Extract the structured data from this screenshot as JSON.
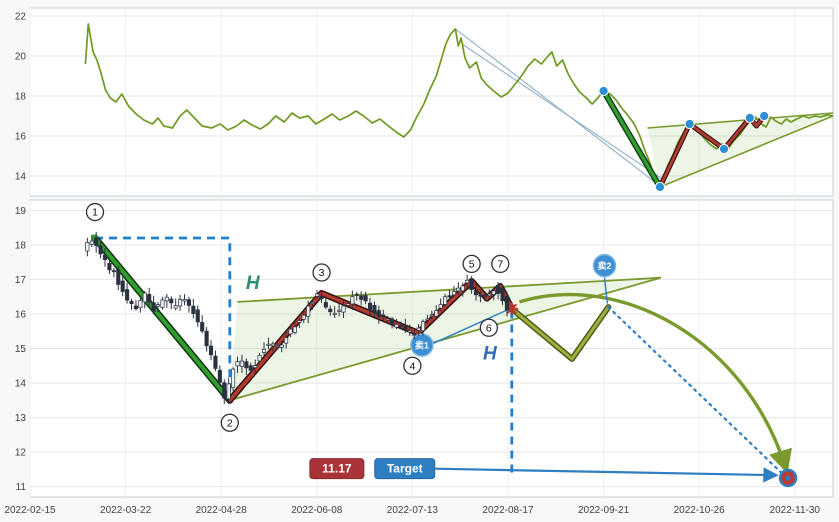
{
  "axis": {
    "bg": "#ffffff",
    "panel_border": "#c9ced3",
    "grid_color": "#e3e6e9",
    "vgrid_color": "#edf0f2",
    "text_color": "#3c3f44"
  },
  "chart_data": [
    {
      "name": "overview",
      "type": "line",
      "ylim": [
        13.0,
        22.4
      ],
      "yticks": [
        14,
        16,
        18,
        20,
        22
      ],
      "line_color": "#6f9a22",
      "points": [
        [
          0.58,
          19.6
        ],
        [
          0.61,
          21.6
        ],
        [
          0.66,
          20.2
        ],
        [
          0.7,
          19.8
        ],
        [
          0.74,
          19.2
        ],
        [
          0.79,
          18.3
        ],
        [
          0.84,
          17.9
        ],
        [
          0.9,
          17.7
        ],
        [
          0.96,
          18.1
        ],
        [
          1.03,
          17.5
        ],
        [
          1.11,
          17.1
        ],
        [
          1.19,
          16.8
        ],
        [
          1.28,
          16.6
        ],
        [
          1.34,
          16.9
        ],
        [
          1.4,
          16.5
        ],
        [
          1.49,
          16.4
        ],
        [
          1.57,
          17.0
        ],
        [
          1.64,
          17.3
        ],
        [
          1.72,
          16.9
        ],
        [
          1.8,
          16.5
        ],
        [
          1.9,
          16.4
        ],
        [
          1.99,
          16.6
        ],
        [
          2.07,
          16.3
        ],
        [
          2.16,
          16.5
        ],
        [
          2.24,
          16.8
        ],
        [
          2.32,
          16.55
        ],
        [
          2.41,
          16.35
        ],
        [
          2.49,
          16.6
        ],
        [
          2.57,
          17.0
        ],
        [
          2.66,
          16.7
        ],
        [
          2.74,
          17.15
        ],
        [
          2.82,
          16.9
        ],
        [
          2.91,
          17.0
        ],
        [
          2.99,
          16.6
        ],
        [
          3.08,
          16.85
        ],
        [
          3.16,
          17.1
        ],
        [
          3.24,
          16.8
        ],
        [
          3.33,
          17.0
        ],
        [
          3.41,
          17.25
        ],
        [
          3.49,
          17.0
        ],
        [
          3.58,
          16.65
        ],
        [
          3.66,
          16.85
        ],
        [
          3.75,
          16.5
        ],
        [
          3.83,
          16.2
        ],
        [
          3.91,
          15.95
        ],
        [
          3.98,
          16.3
        ],
        [
          4.04,
          16.9
        ],
        [
          4.12,
          17.6
        ],
        [
          4.18,
          18.3
        ],
        [
          4.25,
          19.0
        ],
        [
          4.3,
          19.8
        ],
        [
          4.35,
          20.6
        ],
        [
          4.4,
          21.1
        ],
        [
          4.45,
          21.35
        ],
        [
          4.48,
          20.5
        ],
        [
          4.51,
          20.9
        ],
        [
          4.55,
          19.9
        ],
        [
          4.6,
          19.4
        ],
        [
          4.67,
          19.7
        ],
        [
          4.72,
          18.9
        ],
        [
          4.78,
          18.55
        ],
        [
          4.85,
          18.25
        ],
        [
          4.93,
          17.95
        ],
        [
          5.0,
          18.15
        ],
        [
          5.06,
          18.5
        ],
        [
          5.14,
          19.0
        ],
        [
          5.21,
          19.5
        ],
        [
          5.28,
          19.85
        ],
        [
          5.35,
          19.6
        ],
        [
          5.41,
          19.95
        ],
        [
          5.46,
          20.2
        ],
        [
          5.51,
          19.5
        ],
        [
          5.57,
          19.8
        ],
        [
          5.63,
          19.1
        ],
        [
          5.69,
          18.6
        ],
        [
          5.75,
          18.2
        ],
        [
          5.82,
          17.9
        ],
        [
          5.88,
          17.6
        ],
        [
          5.94,
          17.9
        ],
        [
          6.0,
          18.25
        ],
        [
          6.07,
          18.1
        ],
        [
          6.13,
          17.8
        ],
        [
          6.19,
          17.4
        ],
        [
          6.26,
          17.0
        ],
        [
          6.32,
          16.6
        ],
        [
          6.38,
          16.0
        ],
        [
          6.43,
          15.3
        ],
        [
          6.49,
          14.6
        ],
        [
          6.53,
          14.0
        ],
        [
          6.56,
          13.6
        ],
        [
          6.59,
          13.45
        ],
        [
          6.63,
          13.9
        ],
        [
          6.67,
          14.5
        ],
        [
          6.73,
          15.1
        ],
        [
          6.78,
          15.7
        ],
        [
          6.83,
          16.1
        ],
        [
          6.88,
          16.45
        ],
        [
          6.94,
          16.6
        ],
        [
          6.99,
          16.25
        ],
        [
          7.05,
          15.9
        ],
        [
          7.11,
          15.6
        ],
        [
          7.18,
          15.35
        ],
        [
          7.24,
          15.6
        ],
        [
          7.3,
          15.35
        ],
        [
          7.36,
          15.75
        ],
        [
          7.43,
          16.1
        ],
        [
          7.49,
          16.5
        ],
        [
          7.54,
          16.8
        ],
        [
          7.59,
          16.95
        ],
        [
          7.65,
          16.6
        ],
        [
          7.7,
          16.45
        ],
        [
          7.75,
          16.95
        ],
        [
          7.8,
          16.75
        ],
        [
          7.86,
          16.6
        ],
        [
          7.91,
          16.85
        ],
        [
          7.96,
          16.7
        ],
        [
          8.02,
          16.85
        ],
        [
          8.09,
          17.0
        ],
        [
          8.15,
          16.9
        ],
        [
          8.21,
          17.0
        ],
        [
          8.27,
          16.95
        ],
        [
          8.34,
          17.05
        ],
        [
          8.4,
          17.0
        ]
      ],
      "thin_lines": [
        [
          [
            4.45,
            21.35
          ],
          [
            6.59,
            13.5
          ]
        ],
        [
          [
            4.52,
            20.6
          ],
          [
            6.63,
            13.8
          ]
        ]
      ],
      "triangle": {
        "upper": [
          [
            6.46,
            16.4
          ],
          [
            8.4,
            17.15
          ]
        ],
        "lower": [
          [
            6.59,
            13.45
          ],
          [
            8.4,
            17.0
          ]
        ],
        "fill": "rgba(140,195,100,0.16)",
        "edge": "#7a9a2e"
      },
      "impulse": [
        [
          6.0,
          18.25
        ],
        [
          6.59,
          13.45
        ]
      ],
      "zigzag": [
        [
          6.59,
          13.45
        ],
        [
          6.9,
          16.6
        ],
        [
          7.26,
          15.35
        ],
        [
          7.53,
          16.9
        ],
        [
          7.6,
          16.5
        ],
        [
          7.68,
          17.0
        ]
      ],
      "dots": [
        [
          6.0,
          18.25
        ],
        [
          6.59,
          13.45
        ],
        [
          6.9,
          16.6
        ],
        [
          7.26,
          15.35
        ],
        [
          7.53,
          16.9
        ],
        [
          7.68,
          17.0
        ]
      ],
      "dot_color": "#2e8fd4"
    },
    {
      "name": "detail",
      "type": "candlestick",
      "ylim": [
        10.7,
        19.3
      ],
      "yticks": [
        11,
        12,
        13,
        14,
        15,
        16,
        17,
        18,
        19
      ],
      "xticks": [
        "2022-02-15",
        "2022-03-22",
        "2022-04-28",
        "2022-06-08",
        "2022-07-13",
        "2022-08-17",
        "2022-09-21",
        "2022-10-26",
        "2022-11-30"
      ],
      "candles": {
        "u_start": 0.6,
        "u_step": 0.0462,
        "count": 96,
        "up_color": "#eef1f4",
        "down_color": "#2b3140",
        "path": [
          [
            0.6,
            17.85
          ],
          [
            0.68,
            18.2
          ],
          [
            0.8,
            17.6
          ],
          [
            0.92,
            17.2
          ],
          [
            1.05,
            16.45
          ],
          [
            1.15,
            16.15
          ],
          [
            1.25,
            16.6
          ],
          [
            1.35,
            16.1
          ],
          [
            1.45,
            16.5
          ],
          [
            1.55,
            16.2
          ],
          [
            1.65,
            16.55
          ],
          [
            1.75,
            16.05
          ],
          [
            1.85,
            15.45
          ],
          [
            1.95,
            14.7
          ],
          [
            2.03,
            14.0
          ],
          [
            2.09,
            13.5
          ],
          [
            2.16,
            14.4
          ],
          [
            2.26,
            14.65
          ],
          [
            2.36,
            14.35
          ],
          [
            2.46,
            14.9
          ],
          [
            2.56,
            15.2
          ],
          [
            2.66,
            15.0
          ],
          [
            2.76,
            15.5
          ],
          [
            2.88,
            15.9
          ],
          [
            3.0,
            16.4
          ],
          [
            3.05,
            16.6
          ],
          [
            3.15,
            16.15
          ],
          [
            3.25,
            15.95
          ],
          [
            3.35,
            16.3
          ],
          [
            3.45,
            16.55
          ],
          [
            3.55,
            16.35
          ],
          [
            3.65,
            16.05
          ],
          [
            3.75,
            15.85
          ],
          [
            3.85,
            15.7
          ],
          [
            3.95,
            15.55
          ],
          [
            4.06,
            15.45
          ],
          [
            4.16,
            15.75
          ],
          [
            4.26,
            16.05
          ],
          [
            4.38,
            16.4
          ],
          [
            4.5,
            16.7
          ],
          [
            4.62,
            16.95
          ],
          [
            4.7,
            16.6
          ],
          [
            4.78,
            16.45
          ],
          [
            4.85,
            16.6
          ],
          [
            4.92,
            16.8
          ],
          [
            5.0,
            16.35
          ],
          [
            5.04,
            16.15
          ]
        ]
      },
      "triangle": {
        "upper": [
          [
            2.17,
            16.35
          ],
          [
            6.6,
            17.05
          ]
        ],
        "lower": [
          [
            2.09,
            13.5
          ],
          [
            6.6,
            17.05
          ]
        ],
        "fill": "rgba(140,195,100,0.16)",
        "edge": "#7a9a2e"
      },
      "impulse": [
        [
          0.68,
          18.2
        ],
        [
          2.09,
          13.5
        ]
      ],
      "zigzag": [
        [
          2.09,
          13.5
        ],
        [
          3.05,
          16.6
        ],
        [
          4.06,
          15.45
        ],
        [
          4.62,
          16.95
        ],
        [
          4.78,
          16.45
        ],
        [
          4.92,
          16.8
        ],
        [
          5.04,
          16.15
        ]
      ],
      "forecast_zigzag": [
        [
          5.04,
          16.15
        ],
        [
          5.67,
          14.7
        ],
        [
          6.05,
          16.2
        ]
      ],
      "measure_box": [
        [
          0.68,
          18.2
        ],
        [
          2.09,
          18.2
        ],
        [
          2.09,
          13.5
        ]
      ],
      "event_vline": {
        "u": 5.04,
        "p_top": 16.1,
        "p_bot": 11.35
      },
      "projection_dotted": [
        [
          6.05,
          16.2
        ],
        [
          7.88,
          11.35
        ]
      ],
      "projection_curve": [
        [
          5.12,
          16.35
        ],
        [
          6.2,
          17.25
        ],
        [
          7.5,
          15.2
        ],
        [
          7.91,
          11.5
        ]
      ],
      "connectors": [
        [
          [
            4.22,
            15.15
          ],
          [
            4.98,
            16.1
          ]
        ],
        [
          [
            6.01,
            17.05
          ],
          [
            6.04,
            16.3
          ]
        ]
      ],
      "wave_labels": [
        {
          "n": "1",
          "u": 0.68,
          "p": 18.95
        },
        {
          "n": "2",
          "u": 2.09,
          "p": 12.85
        },
        {
          "n": "3",
          "u": 3.05,
          "p": 17.2
        },
        {
          "n": "4",
          "u": 4.0,
          "p": 14.5
        },
        {
          "n": "5",
          "u": 4.62,
          "p": 17.45
        },
        {
          "n": "6",
          "u": 4.8,
          "p": 15.6
        },
        {
          "n": "7",
          "u": 4.92,
          "p": 17.45
        }
      ],
      "sell_markers": [
        {
          "label": "卖1",
          "u": 4.1,
          "p": 15.1
        },
        {
          "label": "卖2",
          "u": 6.01,
          "p": 17.4
        }
      ],
      "sell_color": "#3d8ed3",
      "h_labels": [
        {
          "text": "H",
          "u": 2.33,
          "p": 16.9,
          "color": "#2e8b74"
        },
        {
          "text": "H",
          "u": 4.81,
          "p": 14.85,
          "color": "#2f6db6"
        }
      ],
      "star": {
        "u": 5.04,
        "p": 16.15,
        "color": "#c03028"
      },
      "badges": {
        "price": {
          "text": "11.17",
          "bg": "#a93438",
          "border": "#8c2a2e",
          "u": 3.21,
          "p": 11.52
        },
        "target": {
          "text": "Target",
          "bg": "#2e7fc2",
          "border": "#2468a4",
          "u": 3.92,
          "p": 11.52
        }
      },
      "target_arrow": [
        [
          4.24,
          11.52
        ],
        [
          7.8,
          11.33
        ]
      ],
      "target_point": {
        "u": 7.93,
        "p": 11.25
      },
      "accent_blue": "#1f7fd0",
      "line_blue": "#2e7fc2",
      "impulse_green": "#2f9e2f",
      "zigzag_red": "#b23b2e",
      "forecast_olive": "#9ab23c",
      "curve_olive": "#7a9a2e"
    }
  ]
}
